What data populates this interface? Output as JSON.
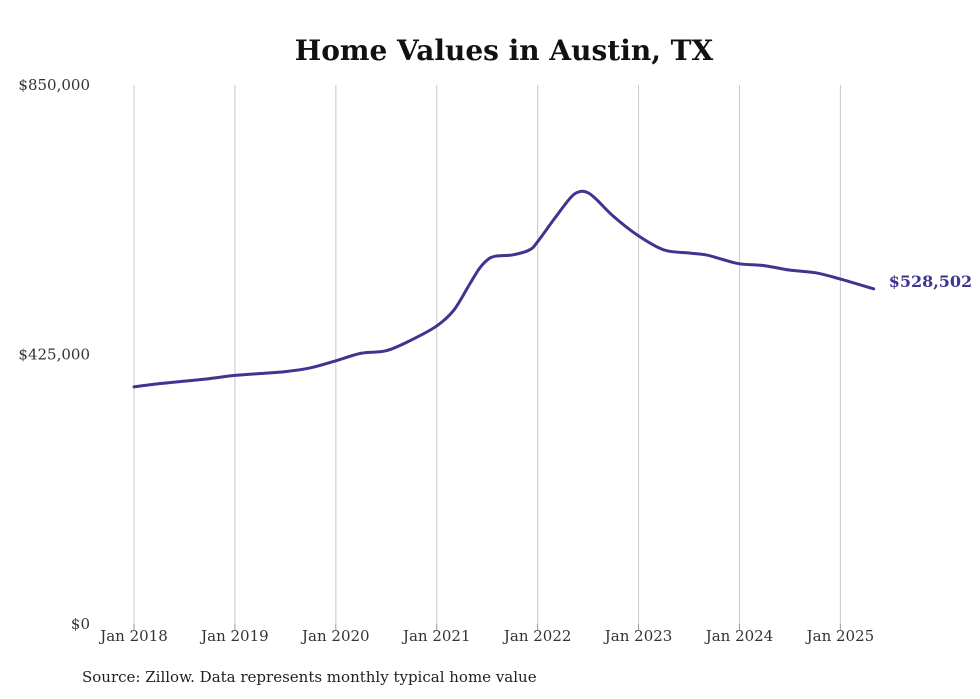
{
  "chart_data": {
    "type": "line",
    "title": "Home Values in Austin, TX",
    "ylim": [
      0,
      850000
    ],
    "yticks": [
      {
        "value": 0,
        "label": "$0"
      },
      {
        "value": 425000,
        "label": "$425,000"
      },
      {
        "value": 850000,
        "label": "$850,000"
      }
    ],
    "xlim": [
      2018.0,
      2025.333
    ],
    "xticks": [
      {
        "value": 2018,
        "label": "Jan 2018"
      },
      {
        "value": 2019,
        "label": "Jan 2019"
      },
      {
        "value": 2020,
        "label": "Jan 2020"
      },
      {
        "value": 2021,
        "label": "Jan 2021"
      },
      {
        "value": 2022,
        "label": "Jan 2022"
      },
      {
        "value": 2023,
        "label": "Jan 2023"
      },
      {
        "value": 2024,
        "label": "Jan 2024"
      },
      {
        "value": 2025,
        "label": "Jan 2025"
      }
    ],
    "grid": "vertical",
    "series": [
      {
        "color": "#3d3590",
        "end_label": "$528,502",
        "x": [
          2018.0,
          2018.25,
          2018.5,
          2018.75,
          2019.0,
          2019.25,
          2019.5,
          2019.75,
          2020.0,
          2020.25,
          2020.5,
          2020.75,
          2021.0,
          2021.17,
          2021.33,
          2021.42,
          2021.5,
          2021.58,
          2021.75,
          2021.92,
          2022.0,
          2022.17,
          2022.33,
          2022.42,
          2022.5,
          2022.58,
          2022.75,
          2023.0,
          2023.25,
          2023.5,
          2023.67,
          2023.83,
          2024.0,
          2024.25,
          2024.5,
          2024.75,
          2025.0,
          2025.33
        ],
        "values": [
          374000,
          379000,
          383000,
          387000,
          392000,
          395000,
          398000,
          404000,
          415000,
          427000,
          431000,
          448000,
          470000,
          495000,
          537000,
          560000,
          574000,
          580000,
          582000,
          590000,
          603000,
          640000,
          673000,
          682000,
          680000,
          670000,
          643000,
          612000,
          590000,
          585000,
          582000,
          575000,
          568000,
          565000,
          558000,
          554000,
          544000,
          528502
        ]
      }
    ]
  },
  "source": "Source: Zillow. Data represents monthly typical home value"
}
